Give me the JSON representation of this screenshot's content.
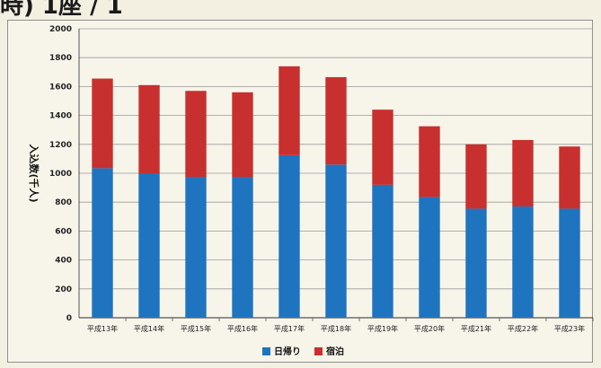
{
  "page": {
    "heading": "時) 1座 / 1"
  },
  "chart_data": {
    "type": "bar",
    "stacked": true,
    "categories": [
      "平成13年",
      "平成14年",
      "平成15年",
      "平成16年",
      "平成17年",
      "平成18年",
      "平成19年",
      "平成20年",
      "平成21年",
      "平成22年",
      "平成23年"
    ],
    "series": [
      {
        "name": "日帰り",
        "color": "#1f74c0",
        "values": [
          1035,
          1000,
          975,
          975,
          1125,
          1060,
          920,
          835,
          755,
          770,
          755
        ]
      },
      {
        "name": "宿泊",
        "color": "#c8302f",
        "values": [
          620,
          610,
          595,
          585,
          615,
          605,
          520,
          490,
          445,
          460,
          430
        ]
      }
    ],
    "ylabel": "入込数(千人)",
    "ylim": [
      0,
      2000
    ],
    "yticks": [
      "0",
      "200",
      "400",
      "600",
      "800",
      "1000",
      "1200",
      "1400",
      "1600",
      "1800",
      "2000"
    ],
    "grid": true,
    "legend": "bottom"
  }
}
